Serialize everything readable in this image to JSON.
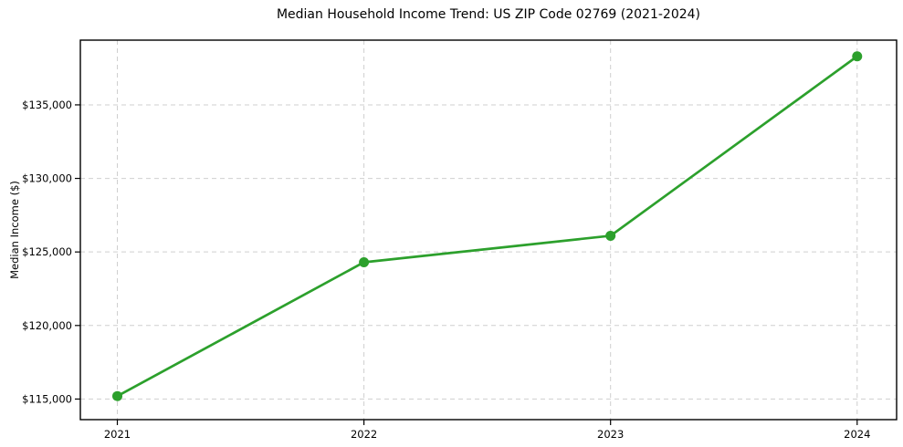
{
  "chart_data": {
    "type": "line",
    "title": "Median Household Income Trend: US ZIP Code 02769 (2021-2024)",
    "xlabel": "",
    "ylabel": "Median Income ($)",
    "x": [
      2021,
      2022,
      2023,
      2024
    ],
    "x_tick_labels": [
      "2021",
      "2022",
      "2023",
      "2024"
    ],
    "series": [
      {
        "name": "Median Household Income",
        "values": [
          115200,
          124300,
          126100,
          138300
        ],
        "color": "#2ca02c",
        "marker": "circle"
      }
    ],
    "y_ticks": [
      115000,
      120000,
      125000,
      130000,
      135000
    ],
    "y_tick_labels": [
      "$115,000",
      "$120,000",
      "$125,000",
      "$130,000",
      "$135,000"
    ],
    "xlim": [
      2020.85,
      2024.16
    ],
    "ylim": [
      113600,
      139400
    ],
    "grid": true,
    "grid_style": "dashed",
    "legend_position": "none"
  },
  "colors": {
    "line": "#2ca02c",
    "grid": "#cfcfcf",
    "axis": "#000000",
    "text": "#000000",
    "background": "#ffffff"
  }
}
